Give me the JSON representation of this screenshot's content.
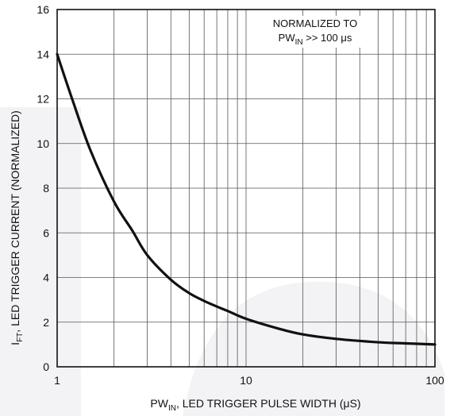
{
  "chart_data": {
    "type": "line",
    "title": "",
    "xlabel": {
      "main": "PW",
      "sub": "IN",
      "rest": ", LED TRIGGER PULSE WIDTH (μS)"
    },
    "ylabel": {
      "main": "I",
      "sub": "FT",
      "rest": ", LED TRIGGER CURRENT (NORMALIZED)"
    },
    "x_scale": "log",
    "xlim": [
      1,
      100
    ],
    "ylim": [
      0,
      16
    ],
    "x_ticks": [
      1,
      10,
      100
    ],
    "x_tick_labels": [
      "1",
      "10",
      "100"
    ],
    "y_ticks": [
      0,
      2,
      4,
      6,
      8,
      10,
      12,
      14,
      16
    ],
    "y_tick_labels": [
      "0",
      "2",
      "4",
      "6",
      "8",
      "10",
      "12",
      "14",
      "16"
    ],
    "grid": true,
    "annotation": {
      "line1": "NORMALIZED TO",
      "line2_main": "PW",
      "line2_sub": "IN",
      "line2_rest": " >> 100 μs"
    },
    "series": [
      {
        "color": "#111111",
        "x": [
          1,
          1.2,
          1.5,
          2,
          2.5,
          3,
          4,
          5,
          6,
          7,
          8,
          10,
          15,
          20,
          30,
          50,
          70,
          100
        ],
        "y": [
          14.0,
          12.0,
          9.7,
          7.4,
          6.1,
          5.0,
          3.9,
          3.3,
          2.95,
          2.7,
          2.5,
          2.15,
          1.7,
          1.45,
          1.25,
          1.1,
          1.05,
          1.0
        ]
      }
    ],
    "background_watermark_color": "#f3f3f5"
  }
}
